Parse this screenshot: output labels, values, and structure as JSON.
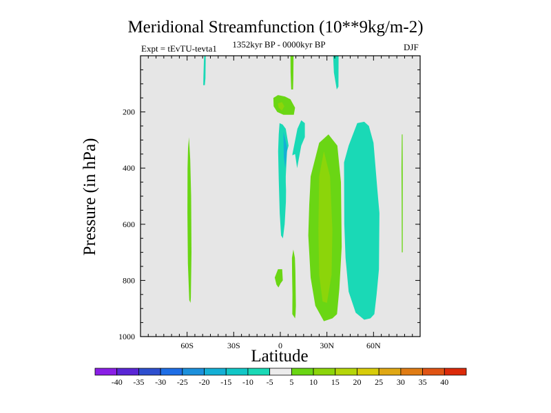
{
  "chart_data": {
    "type": "heatmap",
    "title": "Meridional Streamfunction (10**9kg/m-2)",
    "subtitle_left": "Expt = tEvTU-tevta1",
    "subtitle_center": "1352kyr BP - 0000kyr BP",
    "subtitle_right": "DJF",
    "xlabel": "Latitude",
    "ylabel": "Pressure (in hPa)",
    "x_range": [
      -90,
      90
    ],
    "y_range": [
      0,
      1000
    ],
    "x_ticks": [
      {
        "value": -60,
        "label": "60S"
      },
      {
        "value": -30,
        "label": "30S"
      },
      {
        "value": 0,
        "label": "0"
      },
      {
        "value": 30,
        "label": "30N"
      },
      {
        "value": 60,
        "label": "60N"
      }
    ],
    "y_ticks": [
      {
        "value": 200,
        "label": "200"
      },
      {
        "value": 400,
        "label": "400"
      },
      {
        "value": 600,
        "label": "600"
      },
      {
        "value": 800,
        "label": "800"
      },
      {
        "value": 1000,
        "label": "1000"
      }
    ],
    "background_color": "#e6e6e6",
    "colorbar": {
      "labels": [
        "-40",
        "-35",
        "-30",
        "-25",
        "-20",
        "-15",
        "-10",
        "-5",
        "5",
        "10",
        "15",
        "20",
        "25",
        "30",
        "35",
        "40"
      ],
      "colors": [
        "#8a1ee6",
        "#5a26d6",
        "#2e4fcf",
        "#1e6ee6",
        "#1c90dc",
        "#14b0d6",
        "#12c7c7",
        "#1ad9b6",
        "#ececec",
        "#6ad614",
        "#8cd50a",
        "#b5d60a",
        "#d8cc0a",
        "#e0a814",
        "#e07c14",
        "#e05414",
        "#dc2a0a"
      ]
    },
    "regions": [
      {
        "name": "band-45S-shallow",
        "value": -7.5,
        "color": "#1ad9b6",
        "points": [
          [
            -49,
            0
          ],
          [
            -48,
            0
          ],
          [
            -48.2,
            80
          ],
          [
            -48.6,
            105
          ],
          [
            -49.6,
            105
          ],
          [
            -49.5,
            70
          ],
          [
            -49.2,
            20
          ]
        ]
      },
      {
        "name": "band-60S",
        "value": 7.5,
        "color": "#6ad614",
        "points": [
          [
            -58.8,
            290
          ],
          [
            -58,
            370
          ],
          [
            -57.4,
            500
          ],
          [
            -57.2,
            700
          ],
          [
            -57.6,
            860
          ],
          [
            -57.8,
            880
          ],
          [
            -58.6,
            870
          ],
          [
            -59.5,
            740
          ],
          [
            -59.8,
            560
          ],
          [
            -59.7,
            400
          ],
          [
            -59.4,
            330
          ]
        ]
      },
      {
        "name": "band-5N-upper",
        "value": 7.5,
        "color": "#6ad614",
        "points": [
          [
            6.5,
            0
          ],
          [
            8.5,
            0
          ],
          [
            8.4,
            80
          ],
          [
            8.2,
            120
          ],
          [
            7,
            120
          ],
          [
            6.6,
            60
          ]
        ]
      },
      {
        "name": "cell-eq-200",
        "value": 7.5,
        "color": "#6ad614",
        "points": [
          [
            -4.5,
            150
          ],
          [
            -1.5,
            140
          ],
          [
            3,
            145
          ],
          [
            6.5,
            155
          ],
          [
            9.5,
            185
          ],
          [
            8.7,
            210
          ],
          [
            5.5,
            210
          ],
          [
            2,
            210
          ],
          [
            -2,
            200
          ],
          [
            -4.3,
            180
          ]
        ]
      },
      {
        "name": "cell-eq-200-core",
        "value": 12.5,
        "color": "#8cd50a",
        "points": [
          [
            -1.6,
            170
          ],
          [
            1,
            165
          ],
          [
            2.6,
            180
          ],
          [
            1,
            195
          ],
          [
            -1,
            185
          ]
        ]
      },
      {
        "name": "band-eq-negative",
        "value": -7.5,
        "color": "#1ad9b6",
        "points": [
          [
            -0.5,
            240
          ],
          [
            1.5,
            245
          ],
          [
            3.5,
            260
          ],
          [
            5.3,
            320
          ],
          [
            4.3,
            340
          ],
          [
            3.5,
            430
          ],
          [
            3.5,
            450
          ],
          [
            3.7,
            480
          ],
          [
            3.6,
            520
          ],
          [
            2.8,
            600
          ],
          [
            1.7,
            650
          ],
          [
            0.5,
            640
          ],
          [
            -0.4,
            560
          ],
          [
            -1,
            440
          ],
          [
            -1.4,
            340
          ],
          [
            -1,
            280
          ]
        ]
      },
      {
        "name": "cell-eq-negative-core",
        "value": -12.5,
        "color": "#14b0d6",
        "points": [
          [
            2,
            270
          ],
          [
            4.5,
            330
          ],
          [
            3.2,
            400
          ],
          [
            2.2,
            360
          ]
        ]
      },
      {
        "name": "band-10N-negative",
        "value": -7.5,
        "color": "#1ad9b6",
        "points": [
          [
            7.8,
            350
          ],
          [
            11,
            260
          ],
          [
            13.5,
            230
          ],
          [
            15.8,
            240
          ],
          [
            15.8,
            290
          ],
          [
            13.5,
            320
          ],
          [
            11.5,
            380
          ],
          [
            10.8,
            400
          ],
          [
            9.5,
            350
          ],
          [
            7.8,
            355
          ]
        ]
      },
      {
        "name": "cell-eq-800",
        "value": 7.5,
        "color": "#6ad614",
        "points": [
          [
            -3.6,
            790
          ],
          [
            -1.5,
            760
          ],
          [
            1.2,
            760
          ],
          [
            1.6,
            800
          ],
          [
            0.2,
            810
          ],
          [
            -1.2,
            825
          ],
          [
            -2.5,
            815
          ]
        ]
      },
      {
        "name": "band-8N-lower",
        "value": 7.5,
        "color": "#6ad614",
        "points": [
          [
            7.5,
            720
          ],
          [
            8.4,
            690
          ],
          [
            9.4,
            720
          ],
          [
            9.7,
            770
          ],
          [
            10,
            890
          ],
          [
            9.8,
            920
          ],
          [
            9.5,
            935
          ],
          [
            7.7,
            920
          ],
          [
            7.8,
            850
          ],
          [
            7.6,
            780
          ]
        ]
      },
      {
        "name": "band-30N",
        "value": 7.5,
        "color": "#6ad614",
        "points": [
          [
            19.5,
            430
          ],
          [
            25,
            310
          ],
          [
            31,
            280
          ],
          [
            36.7,
            320
          ],
          [
            39,
            450
          ],
          [
            39.5,
            680
          ],
          [
            38,
            830
          ],
          [
            36.5,
            920
          ],
          [
            33.5,
            935
          ],
          [
            28,
            945
          ],
          [
            22.5,
            890
          ],
          [
            19.5,
            790
          ],
          [
            18,
            640
          ],
          [
            18.6,
            530
          ],
          [
            19.2,
            470
          ]
        ]
      },
      {
        "name": "cell-30N-core",
        "value": 12.5,
        "color": "#8cd50a",
        "points": [
          [
            25,
            430
          ],
          [
            28,
            340
          ],
          [
            32,
            430
          ],
          [
            33.5,
            620
          ],
          [
            33,
            780
          ],
          [
            30,
            880
          ],
          [
            27.2,
            875
          ],
          [
            25,
            780
          ],
          [
            24.5,
            620
          ]
        ]
      },
      {
        "name": "band-30N-upper",
        "value": -7.5,
        "color": "#1ad9b6",
        "points": [
          [
            34,
            0
          ],
          [
            37.5,
            0
          ],
          [
            37.4,
            110
          ],
          [
            36.3,
            120
          ],
          [
            34.5,
            60
          ]
        ]
      },
      {
        "name": "band-55N",
        "value": -7.5,
        "color": "#1ad9b6",
        "points": [
          [
            41,
            380
          ],
          [
            44,
            320
          ],
          [
            49.5,
            240
          ],
          [
            54,
            235
          ],
          [
            57,
            250
          ],
          [
            60,
            310
          ],
          [
            62.5,
            480
          ],
          [
            63.8,
            560
          ],
          [
            63.5,
            760
          ],
          [
            62,
            850
          ],
          [
            60.5,
            920
          ],
          [
            58,
            935
          ],
          [
            54,
            940
          ],
          [
            48.5,
            915
          ],
          [
            44,
            840
          ],
          [
            42,
            720
          ],
          [
            41.2,
            600
          ]
        ]
      },
      {
        "name": "band-78N",
        "value": 7.5,
        "color": "#6ad614",
        "points": [
          [
            78.2,
            280
          ],
          [
            78.7,
            280
          ],
          [
            78.8,
            420
          ],
          [
            78.8,
            700
          ],
          [
            78.2,
            700
          ],
          [
            78.1,
            520
          ],
          [
            78,
            400
          ]
        ]
      }
    ]
  }
}
